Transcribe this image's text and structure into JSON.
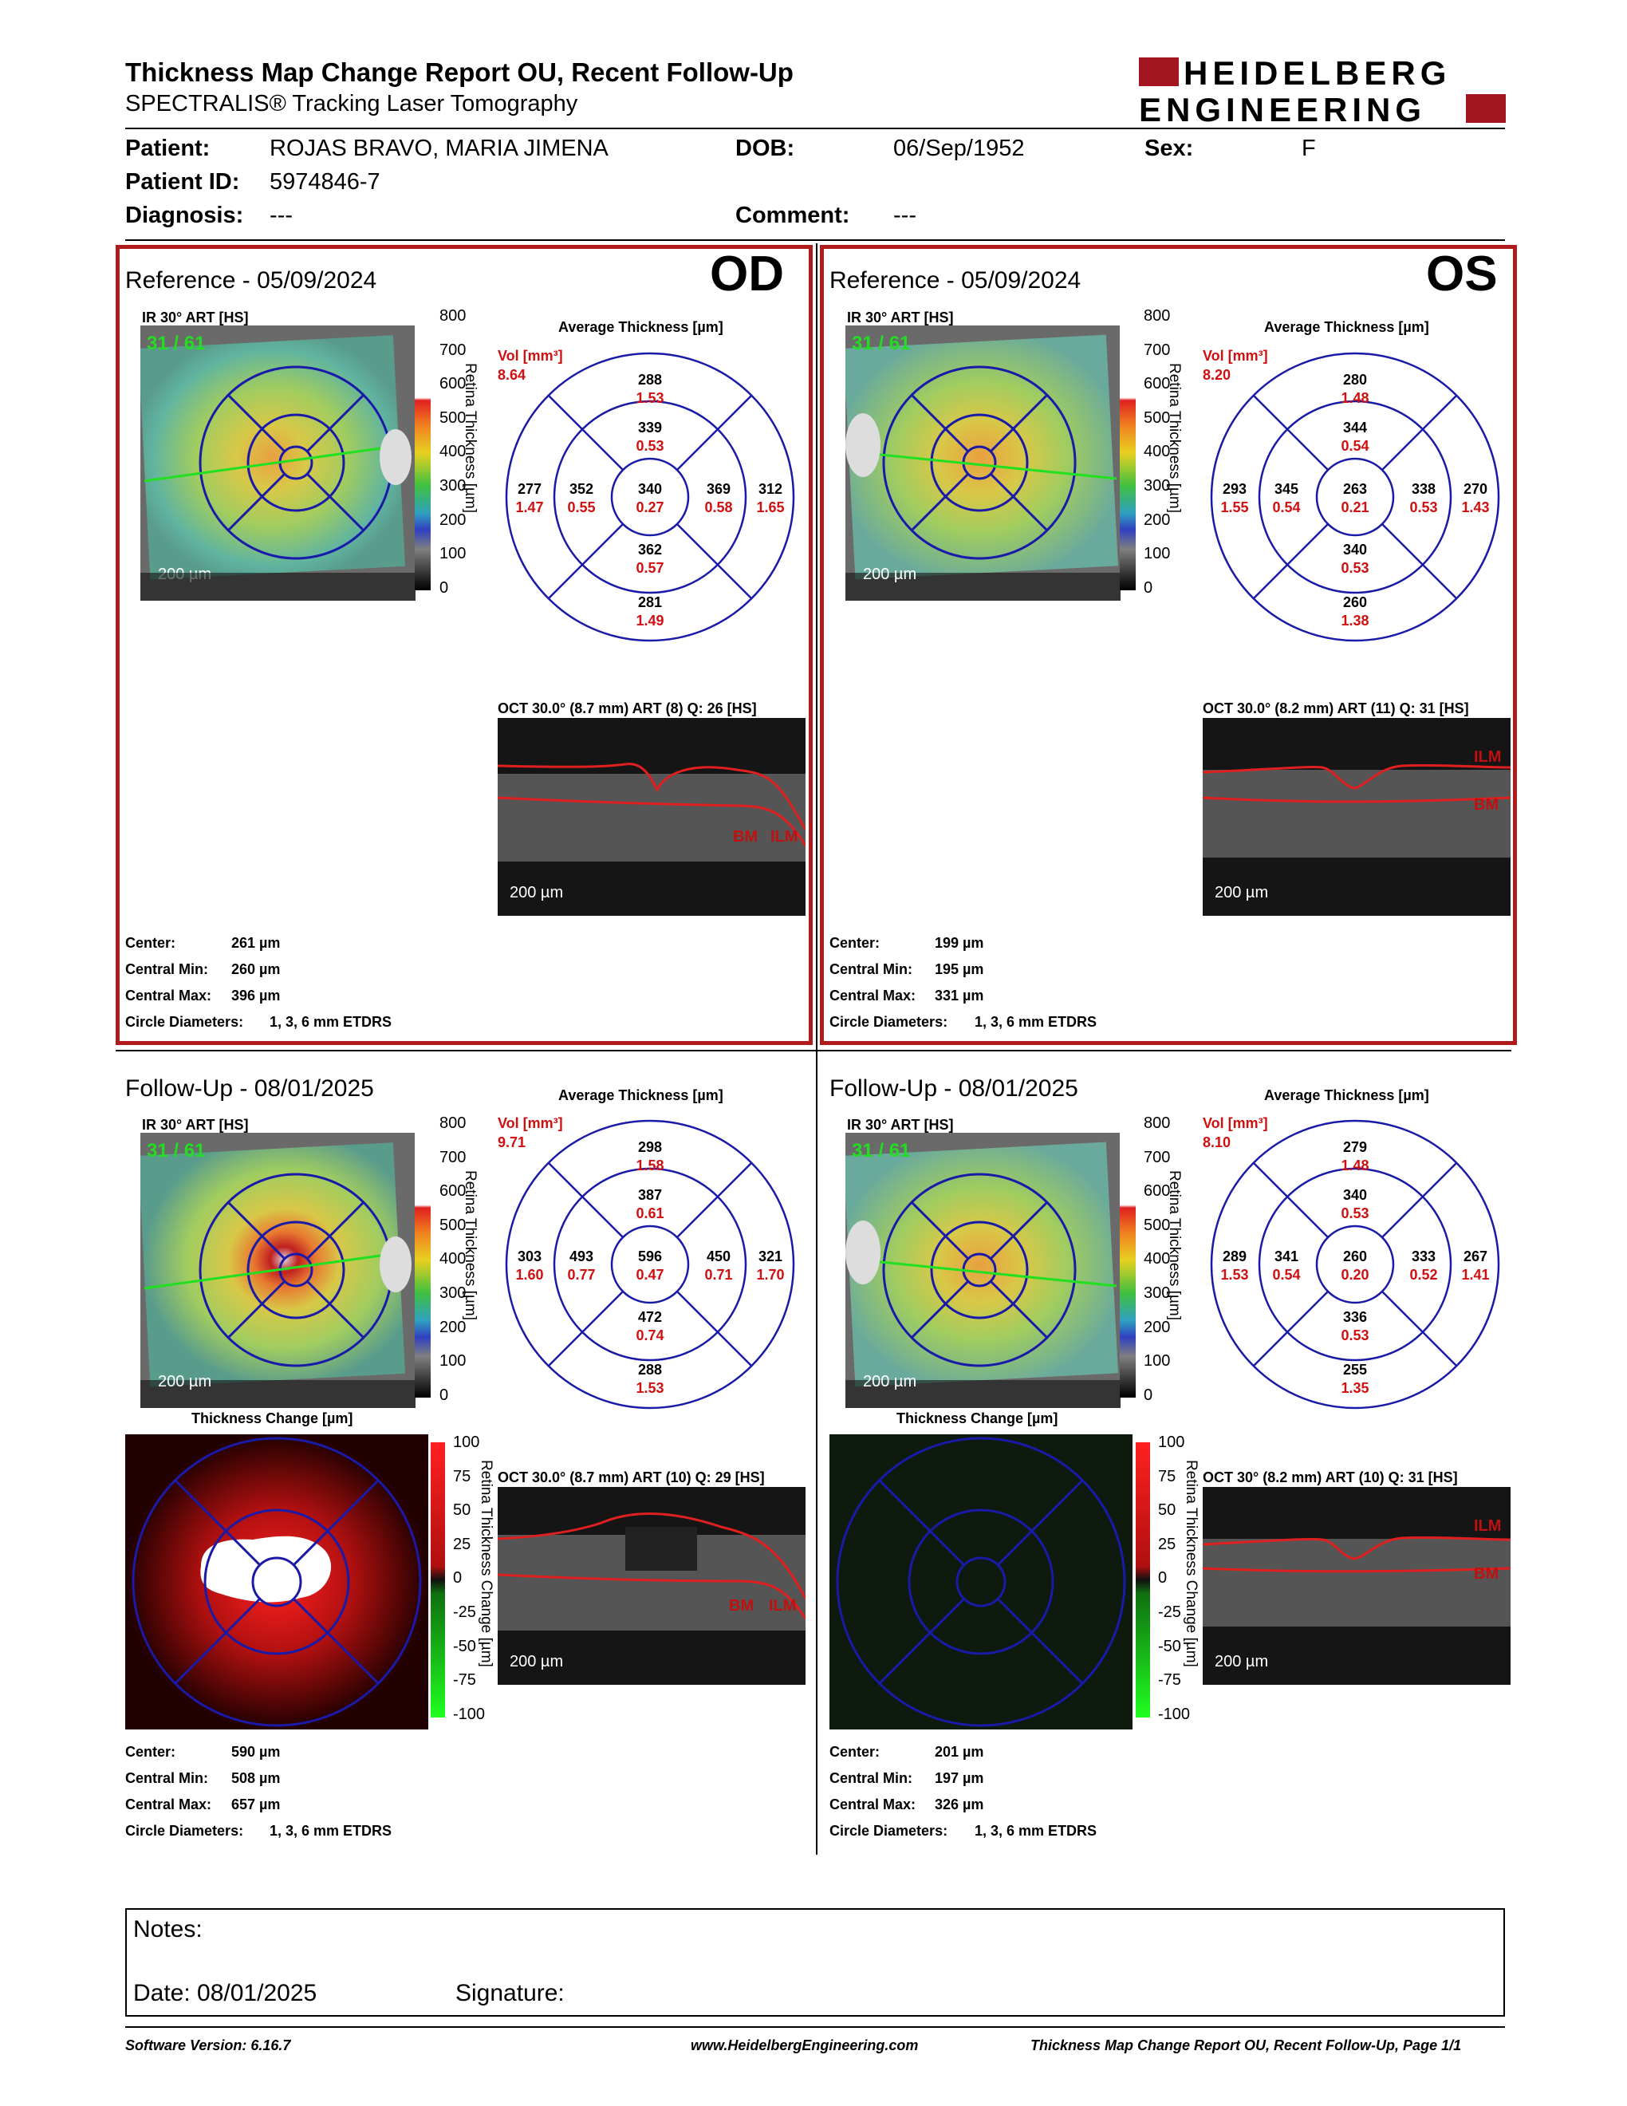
{
  "header": {
    "title": "Thickness Map Change Report OU, Recent Follow-Up",
    "subtitle": "SPECTRALIS® Tracking Laser Tomography",
    "logo_line1": "HEIDELBERG",
    "logo_line2": "ENGINEERING"
  },
  "patient": {
    "patient_label": "Patient:",
    "patient_value": "ROJAS BRAVO, MARIA JIMENA",
    "dob_label": "DOB:",
    "dob_value": "06/Sep/1952",
    "sex_label": "Sex:",
    "sex_value": "F",
    "id_label": "Patient ID:",
    "id_value": "5974846-7",
    "diagnosis_label": "Diagnosis:",
    "diagnosis_value": "---",
    "comment_label": "Comment:",
    "comment_value": "---"
  },
  "common": {
    "ir_label": "IR 30° ART [HS]",
    "avg_label": "Average Thickness [µm]",
    "vol_label": "Vol [mm³]",
    "scalebar": "200 µm",
    "retina_axis": "Retina Thickness [µm]",
    "change_axis": "Retina Thickness Change [µm]",
    "thickness_change": "Thickness Change [µm]",
    "scale_ticks": [
      "800",
      "700",
      "600",
      "500",
      "400",
      "300",
      "200",
      "100",
      "0"
    ],
    "change_ticks": [
      "100",
      "75",
      "50",
      "25",
      "0",
      "-25",
      "-50",
      "-75",
      "-100"
    ],
    "ilm": "ILM",
    "bm": "BM",
    "stat_labels": {
      "center": "Center:",
      "cmin": "Central Min:",
      "cmax": "Central Max:",
      "circ": "Circle Diameters:"
    },
    "circle_value": "1, 3, 6 mm ETDRS"
  },
  "od_ref": {
    "title": "Reference - 05/09/2024",
    "eye": "OD",
    "frame": "31 / 61",
    "vol": "8.64",
    "grid": {
      "sup_o": "288",
      "sup_o_v": "1.53",
      "sup_i": "339",
      "sup_i_v": "0.53",
      "tem_o": "277",
      "tem_o_v": "1.47",
      "tem_i": "352",
      "tem_i_v": "0.55",
      "cen": "340",
      "cen_v": "0.27",
      "nas_i": "369",
      "nas_i_v": "0.58",
      "nas_o": "312",
      "nas_o_v": "1.65",
      "inf_i": "362",
      "inf_i_v": "0.57",
      "inf_o": "281",
      "inf_o_v": "1.49"
    },
    "oct_label": "OCT 30.0° (8.7 mm) ART (8) Q: 26 [HS]",
    "center": "261 µm",
    "cmin": "260 µm",
    "cmax": "396 µm"
  },
  "os_ref": {
    "title": "Reference - 05/09/2024",
    "eye": "OS",
    "frame": "31 / 61",
    "vol": "8.20",
    "grid": {
      "sup_o": "280",
      "sup_o_v": "1.48",
      "sup_i": "344",
      "sup_i_v": "0.54",
      "tem_o": "293",
      "tem_o_v": "1.55",
      "tem_i": "345",
      "tem_i_v": "0.54",
      "cen": "263",
      "cen_v": "0.21",
      "nas_i": "338",
      "nas_i_v": "0.53",
      "nas_o": "270",
      "nas_o_v": "1.43",
      "inf_i": "340",
      "inf_i_v": "0.53",
      "inf_o": "260",
      "inf_o_v": "1.38"
    },
    "oct_label": "OCT 30.0° (8.2 mm) ART (11) Q: 31 [HS]",
    "center": "199 µm",
    "cmin": "195 µm",
    "cmax": "331 µm"
  },
  "od_fu": {
    "title": "Follow-Up - 08/01/2025",
    "frame": "31 / 61",
    "vol": "9.71",
    "grid": {
      "sup_o": "298",
      "sup_o_v": "1.58",
      "sup_i": "387",
      "sup_i_v": "0.61",
      "tem_o": "303",
      "tem_o_v": "1.60",
      "tem_i": "493",
      "tem_i_v": "0.77",
      "cen": "596",
      "cen_v": "0.47",
      "nas_i": "450",
      "nas_i_v": "0.71",
      "nas_o": "321",
      "nas_o_v": "1.70",
      "inf_i": "472",
      "inf_i_v": "0.74",
      "inf_o": "288",
      "inf_o_v": "1.53"
    },
    "oct_label": "OCT 30.0° (8.7 mm) ART (10) Q: 29 [HS]",
    "center": "590 µm",
    "cmin": "508 µm",
    "cmax": "657 µm"
  },
  "os_fu": {
    "title": "Follow-Up - 08/01/2025",
    "frame": "31 / 61",
    "vol": "8.10",
    "grid": {
      "sup_o": "279",
      "sup_o_v": "1.48",
      "sup_i": "340",
      "sup_i_v": "0.53",
      "tem_o": "289",
      "tem_o_v": "1.53",
      "tem_i": "341",
      "tem_i_v": "0.54",
      "cen": "260",
      "cen_v": "0.20",
      "nas_i": "333",
      "nas_i_v": "0.52",
      "nas_o": "267",
      "nas_o_v": "1.41",
      "inf_i": "336",
      "inf_i_v": "0.53",
      "inf_o": "255",
      "inf_o_v": "1.35"
    },
    "oct_label": "OCT 30° (8.2 mm) ART (10) Q: 31 [HS]",
    "center": "201 µm",
    "cmin": "197 µm",
    "cmax": "326 µm"
  },
  "notes": {
    "notes_label": "Notes:",
    "date_label": "Date: 08/01/2025",
    "signature_label": "Signature:"
  },
  "footer": {
    "version": "Software Version: 6.16.7",
    "url": "www.HeidelbergEngineering.com",
    "page": "Thickness Map Change Report OU, Recent Follow-Up, Page 1/1"
  },
  "colors": {
    "red_frame": "#b01c1c",
    "grid_blue": "#1a1aa8",
    "value_red": "#d01010",
    "logo_red": "#a31621"
  }
}
